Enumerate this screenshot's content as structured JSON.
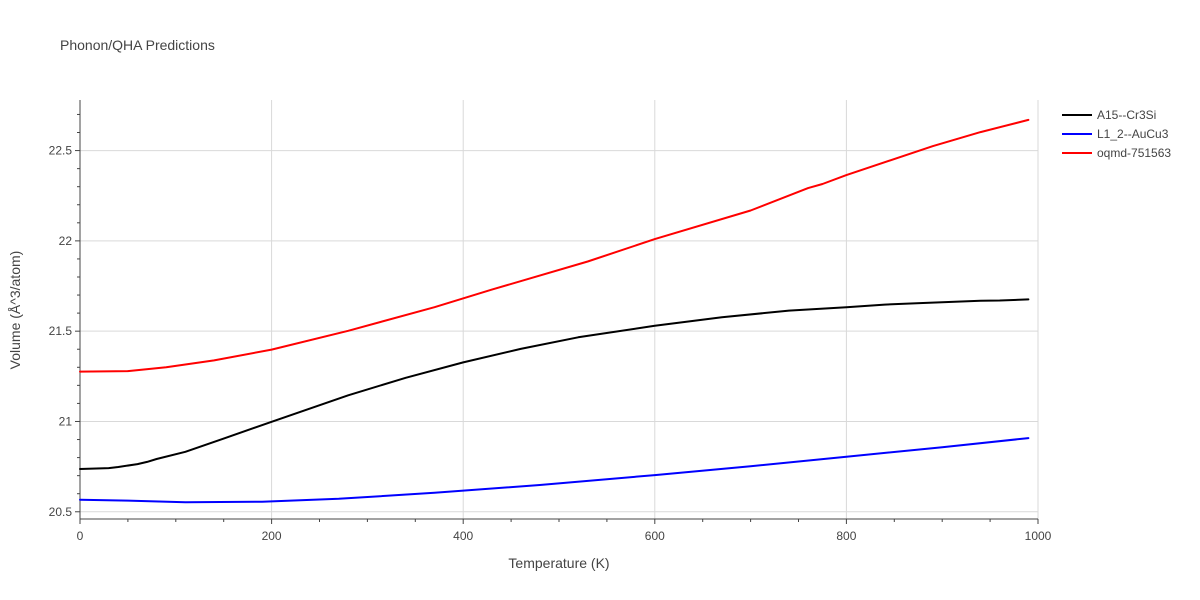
{
  "chart_data": {
    "type": "line",
    "title": "Phonon/QHA Predictions",
    "xlabel": "Temperature (K)",
    "ylabel": "Volume (Å^3/atom)",
    "xlim": [
      0,
      1000
    ],
    "ylim": [
      20.46,
      22.78
    ],
    "xticks": [
      0,
      200,
      400,
      600,
      800,
      1000
    ],
    "xtick_labels": [
      "0",
      "200",
      "400",
      "600",
      "800",
      "1000"
    ],
    "yticks": [
      20.5,
      21,
      21.5,
      22,
      22.5
    ],
    "ytick_labels": [
      "20.5",
      "21",
      "21.5",
      "22",
      "22.5"
    ],
    "grid": true,
    "legend_position": "top-right",
    "series": [
      {
        "name": "A15--Cr3Si",
        "color": "#000000",
        "x": [
          0,
          30,
          40,
          60,
          70,
          80,
          110,
          150,
          200,
          280,
          340,
          400,
          460,
          520,
          600,
          670,
          740,
          800,
          840,
          880,
          940,
          960,
          990
        ],
        "y": [
          20.737,
          20.742,
          20.748,
          20.764,
          20.776,
          20.792,
          20.832,
          20.905,
          20.998,
          21.145,
          21.242,
          21.327,
          21.402,
          21.466,
          21.53,
          21.577,
          21.614,
          21.633,
          21.647,
          21.656,
          21.669,
          21.67,
          21.676
        ]
      },
      {
        "name": "L1_2--AuCu3",
        "color": "#0000ff",
        "x": [
          0,
          50,
          110,
          190,
          270,
          370,
          480,
          600,
          700,
          800,
          900,
          990
        ],
        "y": [
          20.567,
          20.562,
          20.553,
          20.556,
          20.572,
          20.605,
          20.648,
          20.703,
          20.752,
          20.805,
          20.857,
          20.908
        ]
      },
      {
        "name": "oqmd-751563",
        "color": "#ff0000",
        "x": [
          0,
          50,
          90,
          140,
          200,
          280,
          370,
          430,
          530,
          600,
          700,
          760,
          775,
          800,
          890,
          940,
          990
        ],
        "y": [
          21.276,
          21.279,
          21.3,
          21.338,
          21.398,
          21.502,
          21.633,
          21.73,
          21.886,
          22.01,
          22.168,
          22.292,
          22.315,
          22.364,
          22.524,
          22.602,
          22.67
        ]
      }
    ]
  }
}
